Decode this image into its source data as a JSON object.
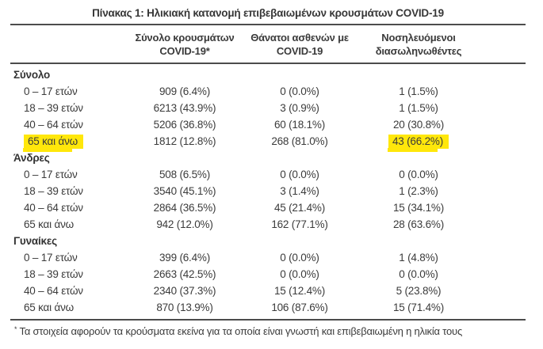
{
  "title": "Πίνακας 1: Ηλικιακή κατανομή επιβεβαιωμένων κρουσμάτων COVID-19",
  "highlight_color": "#ffe70b",
  "table": {
    "columns": [
      {
        "line1": "Σύνολο κρουσμάτων",
        "line2": "COVID-19*"
      },
      {
        "line1": "Θάνατοι ασθενών με",
        "line2": "COVID-19"
      },
      {
        "line1": "Νοσηλευόμενοι",
        "line2": "διασωληνωθέντες"
      }
    ],
    "sections": [
      {
        "label": "Σύνολο",
        "rows": [
          {
            "label": "0 – 17 ετών",
            "cases": "909 (6.4%)",
            "deaths": "0 (0.0%)",
            "intubated": "1 (1.5%)"
          },
          {
            "label": "18 – 39 ετών",
            "cases": "6213 (43.9%)",
            "deaths": "3 (0.9%)",
            "intubated": "1 (1.5%)"
          },
          {
            "label": "40 – 64 ετών",
            "cases": "5206 (36.8%)",
            "deaths": "60 (18.1%)",
            "intubated": "20 (30.8%)"
          },
          {
            "label": "65 και άνω",
            "cases": "1812 (12.8%)",
            "deaths": "268 (81.0%)",
            "intubated": "43 (66.2%)",
            "highlighted": [
              "label",
              "intubated"
            ]
          }
        ]
      },
      {
        "label": "Άνδρες",
        "rows": [
          {
            "label": "0 – 17 ετών",
            "cases": "508 (6.5%)",
            "deaths": "0 (0.0%)",
            "intubated": "0 (0.0%)"
          },
          {
            "label": "18 – 39 ετών",
            "cases": "3540 (45.1%)",
            "deaths": "3 (1.4%)",
            "intubated": "1 (2.3%)"
          },
          {
            "label": "40 – 64 ετών",
            "cases": "2864 (36.5%)",
            "deaths": "45 (21.4%)",
            "intubated": "15 (34.1%)"
          },
          {
            "label": "65 και άνω",
            "cases": "942 (12.0%)",
            "deaths": "162 (77.1%)",
            "intubated": "28 (63.6%)"
          }
        ]
      },
      {
        "label": "Γυναίκες",
        "rows": [
          {
            "label": "0 – 17 ετών",
            "cases": "399 (6.4%)",
            "deaths": "0 (0.0%)",
            "intubated": "1 (4.8%)"
          },
          {
            "label": "18 – 39 ετών",
            "cases": "2663 (42.5%)",
            "deaths": "0 (0.0%)",
            "intubated": "0 (0.0%)"
          },
          {
            "label": "40 – 64 ετών",
            "cases": "2340 (37.3%)",
            "deaths": "15 (12.4%)",
            "intubated": "5 (23.8%)"
          },
          {
            "label": "65 και άνω",
            "cases": "870 (13.9%)",
            "deaths": "106 (87.6%)",
            "intubated": "15 (71.4%)"
          }
        ]
      }
    ]
  },
  "footnote": {
    "marker": "*",
    "text": "Τα στοιχεία αφορούν τα κρούσματα εκείνα για τα οποία είναι γνωστή και επιβεβαιωμένη η ηλικία τους"
  }
}
